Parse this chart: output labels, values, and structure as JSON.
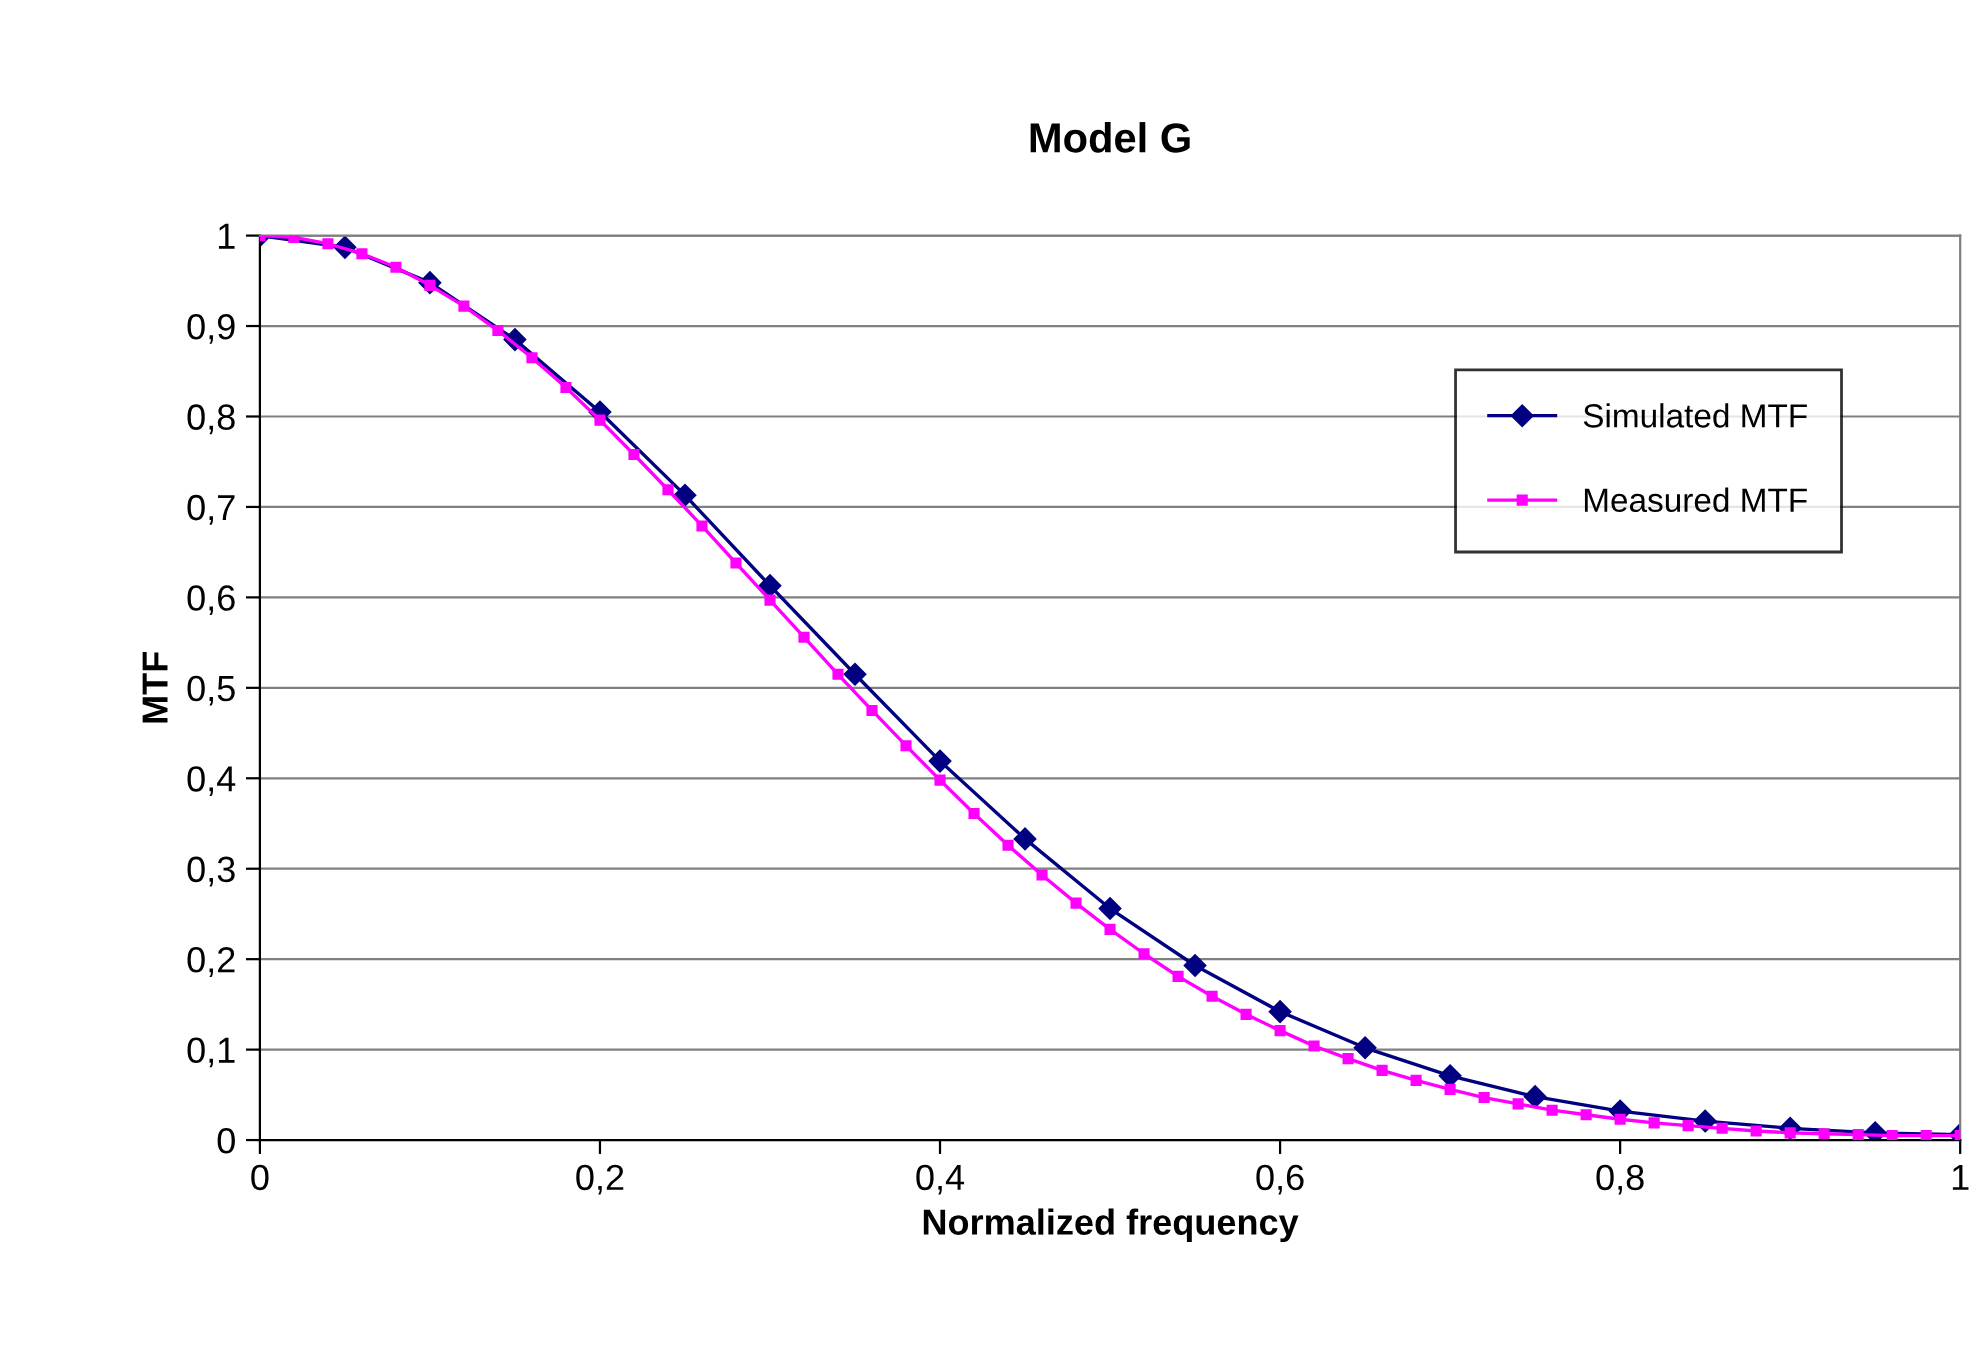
{
  "chart_data": {
    "type": "line",
    "title": "Model G",
    "xlabel": "Normalized frequency",
    "ylabel": "MTF",
    "xlim": [
      0,
      1
    ],
    "ylim": [
      0,
      1
    ],
    "xticks": [
      0,
      {
        "value": 0.2,
        "label": "0,2"
      },
      {
        "value": 0.4,
        "label": "0,4"
      },
      {
        "value": 0.6,
        "label": "0,6"
      },
      {
        "value": 0.8,
        "label": "0,8"
      },
      1
    ],
    "yticks": [
      0,
      {
        "value": 0.1,
        "label": "0,1"
      },
      {
        "value": 0.2,
        "label": "0,2"
      },
      {
        "value": 0.3,
        "label": "0,3"
      },
      {
        "value": 0.4,
        "label": "0,4"
      },
      {
        "value": 0.5,
        "label": "0,5"
      },
      {
        "value": 0.6,
        "label": "0,6"
      },
      {
        "value": 0.7,
        "label": "0,7"
      },
      {
        "value": 0.8,
        "label": "0,8"
      },
      {
        "value": 0.9,
        "label": "0,9"
      },
      1
    ],
    "grid": "y",
    "legend": "top right",
    "series": [
      {
        "name": "Simulated MTF",
        "color": "#000080",
        "marker": "diamond",
        "x": [
          0,
          0.05,
          0.1,
          0.15,
          0.2,
          0.25,
          0.3,
          0.35,
          0.4,
          0.45,
          0.5,
          0.55,
          0.6,
          0.65,
          0.7,
          0.75,
          0.8,
          0.85,
          0.9,
          0.95,
          1.0
        ],
        "values": [
          1.0,
          0.987,
          0.948,
          0.885,
          0.805,
          0.713,
          0.613,
          0.515,
          0.419,
          0.333,
          0.256,
          0.193,
          0.142,
          0.102,
          0.071,
          0.048,
          0.032,
          0.021,
          0.013,
          0.008,
          0.006
        ]
      },
      {
        "name": "Measured MTF",
        "color": "#ff00ff",
        "marker": "square",
        "x": [
          0,
          0.02,
          0.04,
          0.06,
          0.08,
          0.1,
          0.12,
          0.14,
          0.16,
          0.18,
          0.2,
          0.22,
          0.24,
          0.26,
          0.28,
          0.3,
          0.32,
          0.34,
          0.36,
          0.38,
          0.4,
          0.42,
          0.44,
          0.46,
          0.48,
          0.5,
          0.52,
          0.54,
          0.56,
          0.58,
          0.6,
          0.62,
          0.64,
          0.66,
          0.68,
          0.7,
          0.72,
          0.74,
          0.76,
          0.78,
          0.8,
          0.82,
          0.84,
          0.86,
          0.88,
          0.9,
          0.92,
          0.94,
          0.96,
          0.98,
          1.0
        ],
        "values": [
          1.0,
          0.998,
          0.991,
          0.98,
          0.965,
          0.945,
          0.922,
          0.895,
          0.865,
          0.832,
          0.796,
          0.758,
          0.719,
          0.679,
          0.638,
          0.597,
          0.556,
          0.515,
          0.475,
          0.436,
          0.398,
          0.361,
          0.326,
          0.293,
          0.262,
          0.233,
          0.206,
          0.181,
          0.159,
          0.139,
          0.121,
          0.104,
          0.09,
          0.077,
          0.066,
          0.056,
          0.047,
          0.04,
          0.033,
          0.028,
          0.023,
          0.019,
          0.016,
          0.013,
          0.01,
          0.008,
          0.007,
          0.006,
          0.005,
          0.005,
          0.005
        ]
      }
    ]
  }
}
